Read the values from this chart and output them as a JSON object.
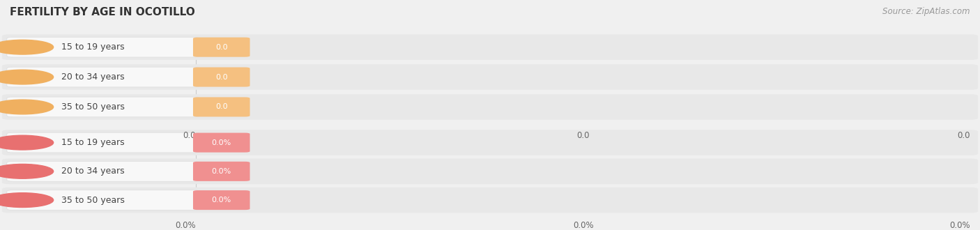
{
  "title": "FERTILITY BY AGE IN OCOTILLO",
  "source_text": "Source: ZipAtlas.com",
  "bg_color": "#f0f0f0",
  "chart_bg": "#ffffff",
  "groups": [
    {
      "labels": [
        "15 to 19 years",
        "20 to 34 years",
        "35 to 50 years"
      ],
      "values": [
        0.0,
        0.0,
        0.0
      ],
      "value_labels": [
        "0.0",
        "0.0",
        "0.0"
      ],
      "bar_color": "#f5c080",
      "circle_color": "#f0b060",
      "axis_tick_label": "0.0"
    },
    {
      "labels": [
        "15 to 19 years",
        "20 to 34 years",
        "35 to 50 years"
      ],
      "values": [
        0.0,
        0.0,
        0.0
      ],
      "value_labels": [
        "0.0%",
        "0.0%",
        "0.0%"
      ],
      "bar_color": "#f09090",
      "circle_color": "#e87070",
      "axis_tick_label": "0.0%"
    }
  ],
  "title_fontsize": 11,
  "label_fontsize": 9,
  "value_fontsize": 8,
  "tick_fontsize": 8.5,
  "source_fontsize": 8.5
}
